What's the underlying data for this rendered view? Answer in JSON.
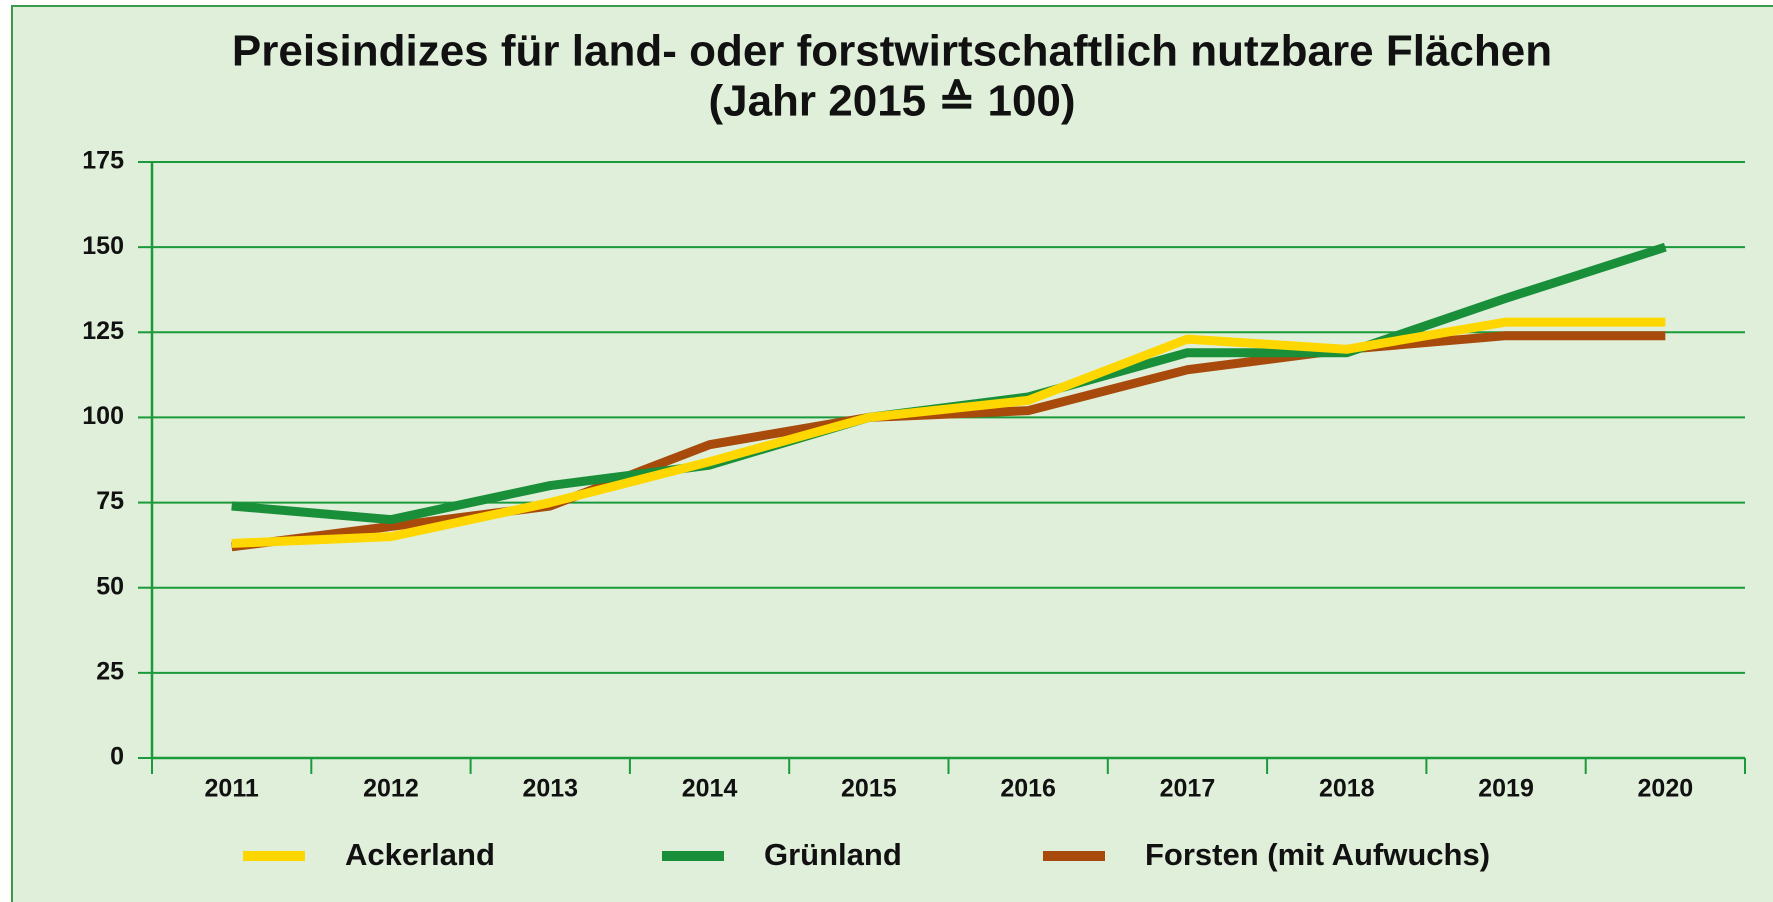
{
  "chart_data": {
    "type": "line",
    "title": "Preisindizes für land- oder forstwirtschaftlich nutzbare Flächen",
    "subtitle": "(Jahr 2015 ≙ 100)",
    "categories": [
      "2011",
      "2012",
      "2013",
      "2014",
      "2015",
      "2016",
      "2017",
      "2018",
      "2019",
      "2020"
    ],
    "series": [
      {
        "name": "Ackerland",
        "color": "#ffd700",
        "values": [
          63,
          65,
          75,
          87,
          100,
          105,
          123,
          120,
          128,
          128
        ]
      },
      {
        "name": "Grünland",
        "color": "#1a8f3a",
        "values": [
          74,
          70,
          80,
          86,
          100,
          106,
          119,
          119,
          135,
          150
        ]
      },
      {
        "name": "Forsten (mit Aufwuchs)",
        "color": "#a84a0c",
        "values": [
          62,
          68,
          74,
          92,
          100,
          102,
          114,
          120,
          124,
          124
        ]
      }
    ],
    "ylim": [
      0,
      175
    ],
    "yticks": [
      0,
      25,
      50,
      75,
      100,
      125,
      150,
      175
    ],
    "grid": true
  }
}
